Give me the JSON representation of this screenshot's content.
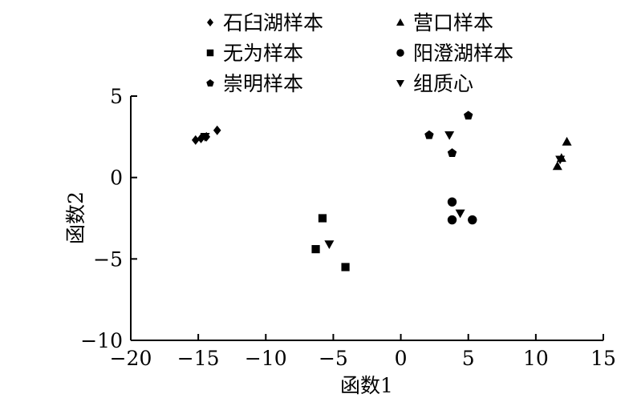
{
  "chart_data": {
    "type": "scatter",
    "title": "",
    "xlabel": "函数1",
    "ylabel": "函数2",
    "xlim": [
      -20,
      15
    ],
    "ylim": [
      -10,
      5
    ],
    "xticks": [
      -20,
      -15,
      -10,
      -5,
      0,
      5,
      10,
      15
    ],
    "yticks": [
      5,
      0,
      -5,
      -10
    ],
    "grid": false,
    "legend_position": "top",
    "series": [
      {
        "name": "石臼湖样本",
        "marker": "diamond",
        "points": [
          [
            -15.2,
            2.3
          ],
          [
            -14.8,
            2.4
          ],
          [
            -14.4,
            2.5
          ],
          [
            -13.6,
            2.9
          ]
        ]
      },
      {
        "name": "营口样本",
        "marker": "triangle-up",
        "points": [
          [
            11.6,
            0.7
          ],
          [
            11.9,
            1.2
          ],
          [
            12.3,
            2.2
          ]
        ]
      },
      {
        "name": "无为样本",
        "marker": "square",
        "points": [
          [
            -6.3,
            -4.4
          ],
          [
            -5.8,
            -2.5
          ],
          [
            -4.1,
            -5.5
          ]
        ]
      },
      {
        "name": "阳澄湖样本",
        "marker": "circle",
        "points": [
          [
            3.8,
            -1.5
          ],
          [
            3.8,
            -2.6
          ],
          [
            5.3,
            -2.6
          ]
        ]
      },
      {
        "name": "崇明样本",
        "marker": "pentagon",
        "points": [
          [
            2.1,
            2.6
          ],
          [
            3.8,
            1.5
          ],
          [
            5.0,
            3.8
          ]
        ]
      },
      {
        "name": "组质心",
        "marker": "triangle-down",
        "points": [
          [
            -14.5,
            2.5
          ],
          [
            -5.3,
            -4.1
          ],
          [
            3.6,
            2.6
          ],
          [
            4.4,
            -2.2
          ],
          [
            11.8,
            1.1
          ]
        ]
      }
    ]
  }
}
